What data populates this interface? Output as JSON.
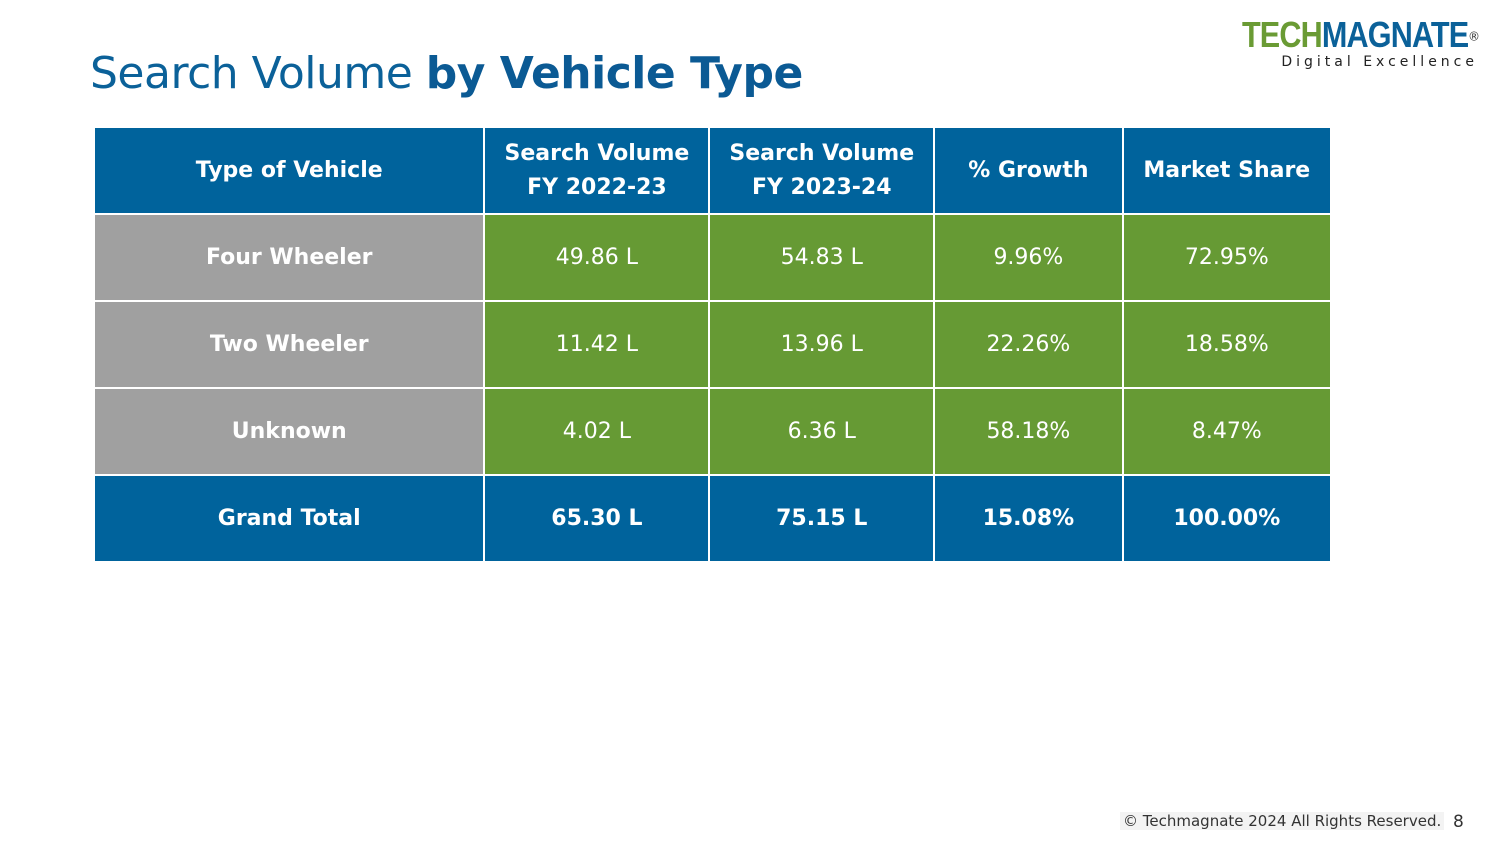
{
  "header": {
    "title_light": "Search Volume",
    "title_bold": "by Vehicle Type",
    "logo_tech": "TECH",
    "logo_magnate": "MAGNATE",
    "logo_reg": "®",
    "logo_tagline": "Digital Excellence"
  },
  "table": {
    "headers": [
      [
        "Type of Vehicle"
      ],
      [
        "Search Volume",
        "FY 2022-23"
      ],
      [
        "Search Volume",
        "FY 2023-24"
      ],
      [
        "% Growth"
      ],
      [
        "Market Share"
      ]
    ],
    "rows": [
      [
        "Four Wheeler",
        "49.86 L",
        "54.83 L",
        "9.96%",
        "72.95%"
      ],
      [
        "Two Wheeler",
        "11.42 L",
        "13.96 L",
        "22.26%",
        "18.58%"
      ],
      [
        "Unknown",
        "4.02 L",
        "6.36 L",
        "58.18%",
        "8.47%"
      ]
    ],
    "total": [
      "Grand Total",
      "65.30 L",
      "75.15 L",
      "15.08%",
      "100.00%"
    ]
  },
  "footer": {
    "copyright": "© Techmagnate 2024 All Rights Reserved.",
    "page": "8"
  }
}
